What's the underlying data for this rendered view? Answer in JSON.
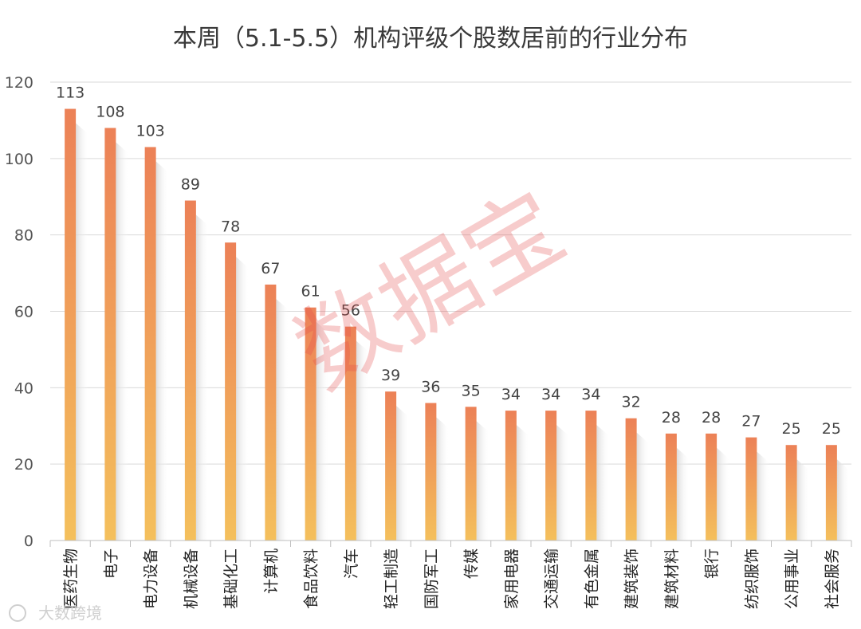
{
  "chart_data": {
    "type": "bar",
    "title": "本周（5.1-5.5）机构评级个股数居前的行业分布",
    "categories": [
      "医药生物",
      "电子",
      "电力设备",
      "机械设备",
      "基础化工",
      "计算机",
      "食品饮料",
      "汽车",
      "轻工制造",
      "国防军工",
      "传媒",
      "家用电器",
      "交通运输",
      "有色金属",
      "建筑装饰",
      "建筑材料",
      "银行",
      "纺织服饰",
      "公用事业",
      "社会服务"
    ],
    "values": [
      113,
      108,
      103,
      89,
      78,
      67,
      61,
      56,
      39,
      36,
      35,
      34,
      34,
      34,
      32,
      28,
      28,
      27,
      25,
      25
    ],
    "ylim": [
      0,
      120
    ],
    "yticks": [
      0,
      20,
      40,
      60,
      80,
      100,
      120
    ],
    "grid": true,
    "bar_color_top": "#ec8157",
    "bar_color_bottom": "#f4c05c",
    "xlabel": "",
    "ylabel": ""
  },
  "watermark": "数据宝",
  "footer_logo": "大数跨境"
}
